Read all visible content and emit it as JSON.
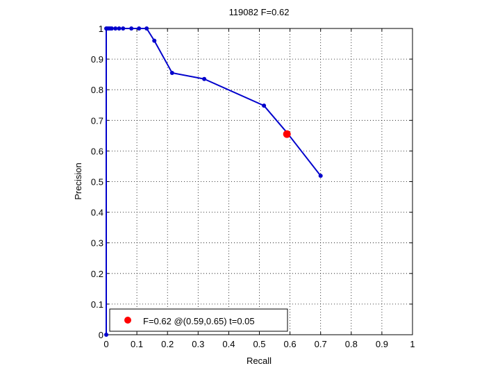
{
  "chart_data": {
    "type": "line",
    "title": "119082 F=0.62",
    "xlabel": "Recall",
    "ylabel": "Precision",
    "xlim": [
      0,
      1
    ],
    "ylim": [
      0,
      1
    ],
    "xticks": [
      "0",
      "0.1",
      "0.2",
      "0.3",
      "0.4",
      "0.5",
      "0.6",
      "0.7",
      "0.8",
      "0.9",
      "1"
    ],
    "yticks": [
      "0",
      "0.1",
      "0.2",
      "0.3",
      "0.4",
      "0.5",
      "0.6",
      "0.7",
      "0.8",
      "0.9",
      "1"
    ],
    "grid": true,
    "series": [
      {
        "color": "#0000cc",
        "x": [
          0.0,
          0.0,
          0.003,
          0.008,
          0.013,
          0.018,
          0.03,
          0.042,
          0.055,
          0.082,
          0.107,
          0.132,
          0.157,
          0.215,
          0.32,
          0.515,
          0.59,
          0.7
        ],
        "y": [
          0.0,
          1.0,
          1.0,
          1.0,
          1.0,
          1.0,
          1.0,
          1.0,
          1.0,
          1.0,
          1.0,
          1.0,
          0.96,
          0.855,
          0.835,
          0.748,
          0.66,
          0.519
        ]
      }
    ],
    "highlight_point": {
      "x": 0.59,
      "y": 0.655,
      "color": "#ff0000"
    },
    "legend": {
      "position": "bottom-left",
      "entries": [
        {
          "label": "F=0.62 @(0.59,0.65) t=0.05",
          "color": "#ff0000"
        }
      ]
    }
  }
}
